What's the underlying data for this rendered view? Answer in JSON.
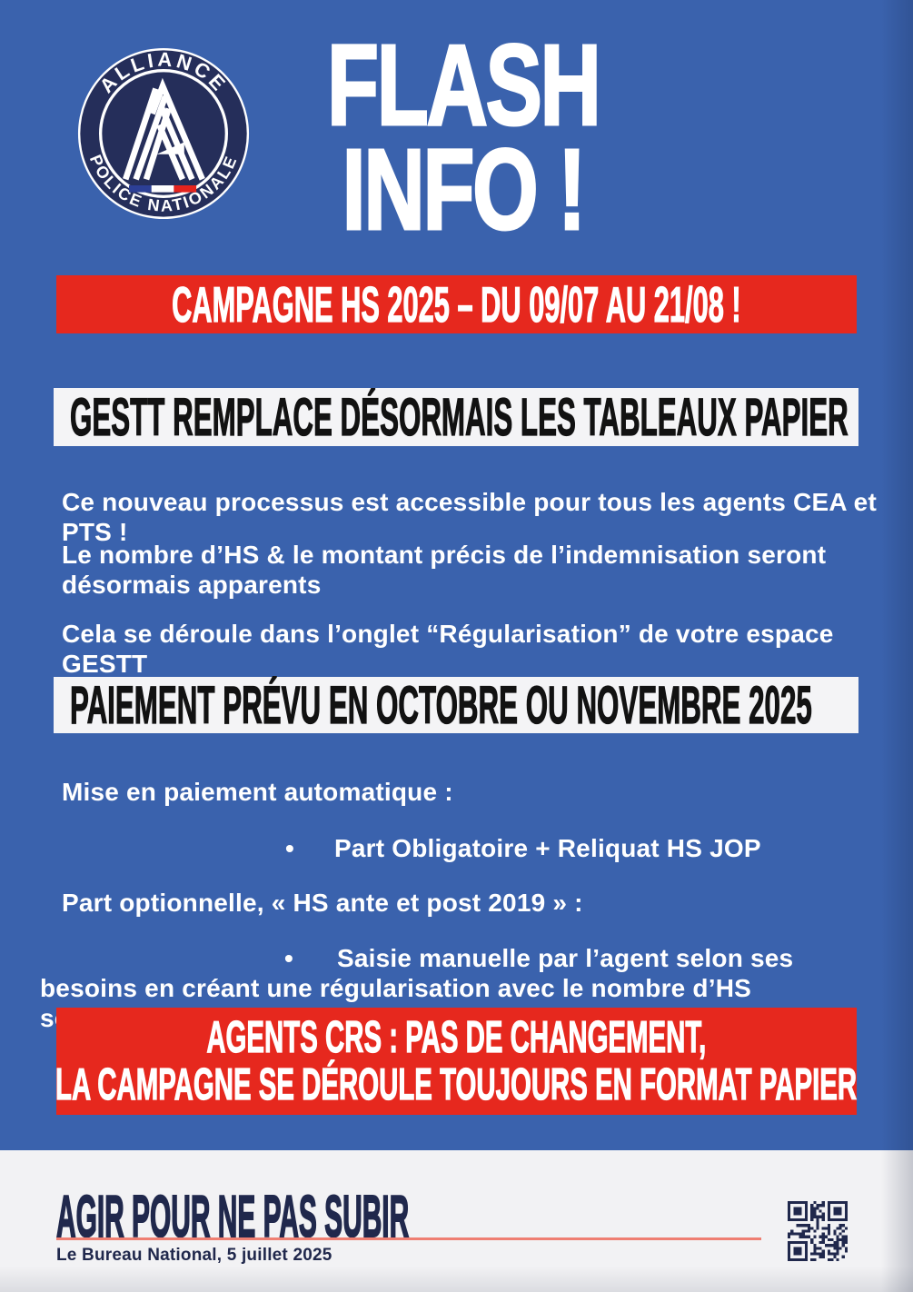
{
  "colors": {
    "background": "#3a62ad",
    "banner_red": "#e6281e",
    "banner_light": "#f4f4f6",
    "heading_text": "#121212",
    "body_text": "#ffffff",
    "logo_navy": "#252e5a",
    "footer_bg": "#f2f2f4",
    "footer_text": "#20284c",
    "footer_underline": "#ef7f72",
    "flag_blue": "#2c3f96",
    "flag_white": "#ffffff",
    "flag_red": "#e5231d"
  },
  "logo": {
    "top_text": "ALLIANCE",
    "bottom_text": "POLICE NATIONALE"
  },
  "title": {
    "line1": "FLASH",
    "line2": "INFO !"
  },
  "campaign_banner": {
    "text": "CAMPAGNE HS 2025 – DU 09/07 AU 21/08 !"
  },
  "gestt": {
    "heading": "GESTT REMPLACE DÉSORMAIS LES TABLEAUX PAPIER",
    "p1": "Ce nouveau processus est accessible pour tous les agents CEA et PTS !",
    "p2": "Le nombre d’HS & le montant précis de l’indemnisation seront désormais apparents",
    "p3": "Cela se déroule dans l’onglet “Régularisation” de votre espace GESTT"
  },
  "paiement": {
    "heading": "PAIEMENT PRÉVU EN OCTOBRE OU NOVEMBRE 2025",
    "p1": "Mise en paiement automatique :",
    "bullet_char": "•",
    "bullet1": "Part Obligatoire + Reliquat HS JOP",
    "p2": "Part optionnelle, « HS ante et post 2019 » :",
    "bullet2": "Saisie manuelle par l’agent selon ses besoins en créant une régularisation avec le nombre d’HS souhaité"
  },
  "crs_banner": {
    "line1": "AGENTS CRS : PAS DE CHANGEMENT,",
    "line2": "LA CAMPAGNE SE DÉROULE TOUJOURS EN FORMAT PAPIER"
  },
  "footer": {
    "slogan": "AGIR POUR NE PAS SUBIR",
    "byline": "Le Bureau National, 5 juillet 2025"
  }
}
